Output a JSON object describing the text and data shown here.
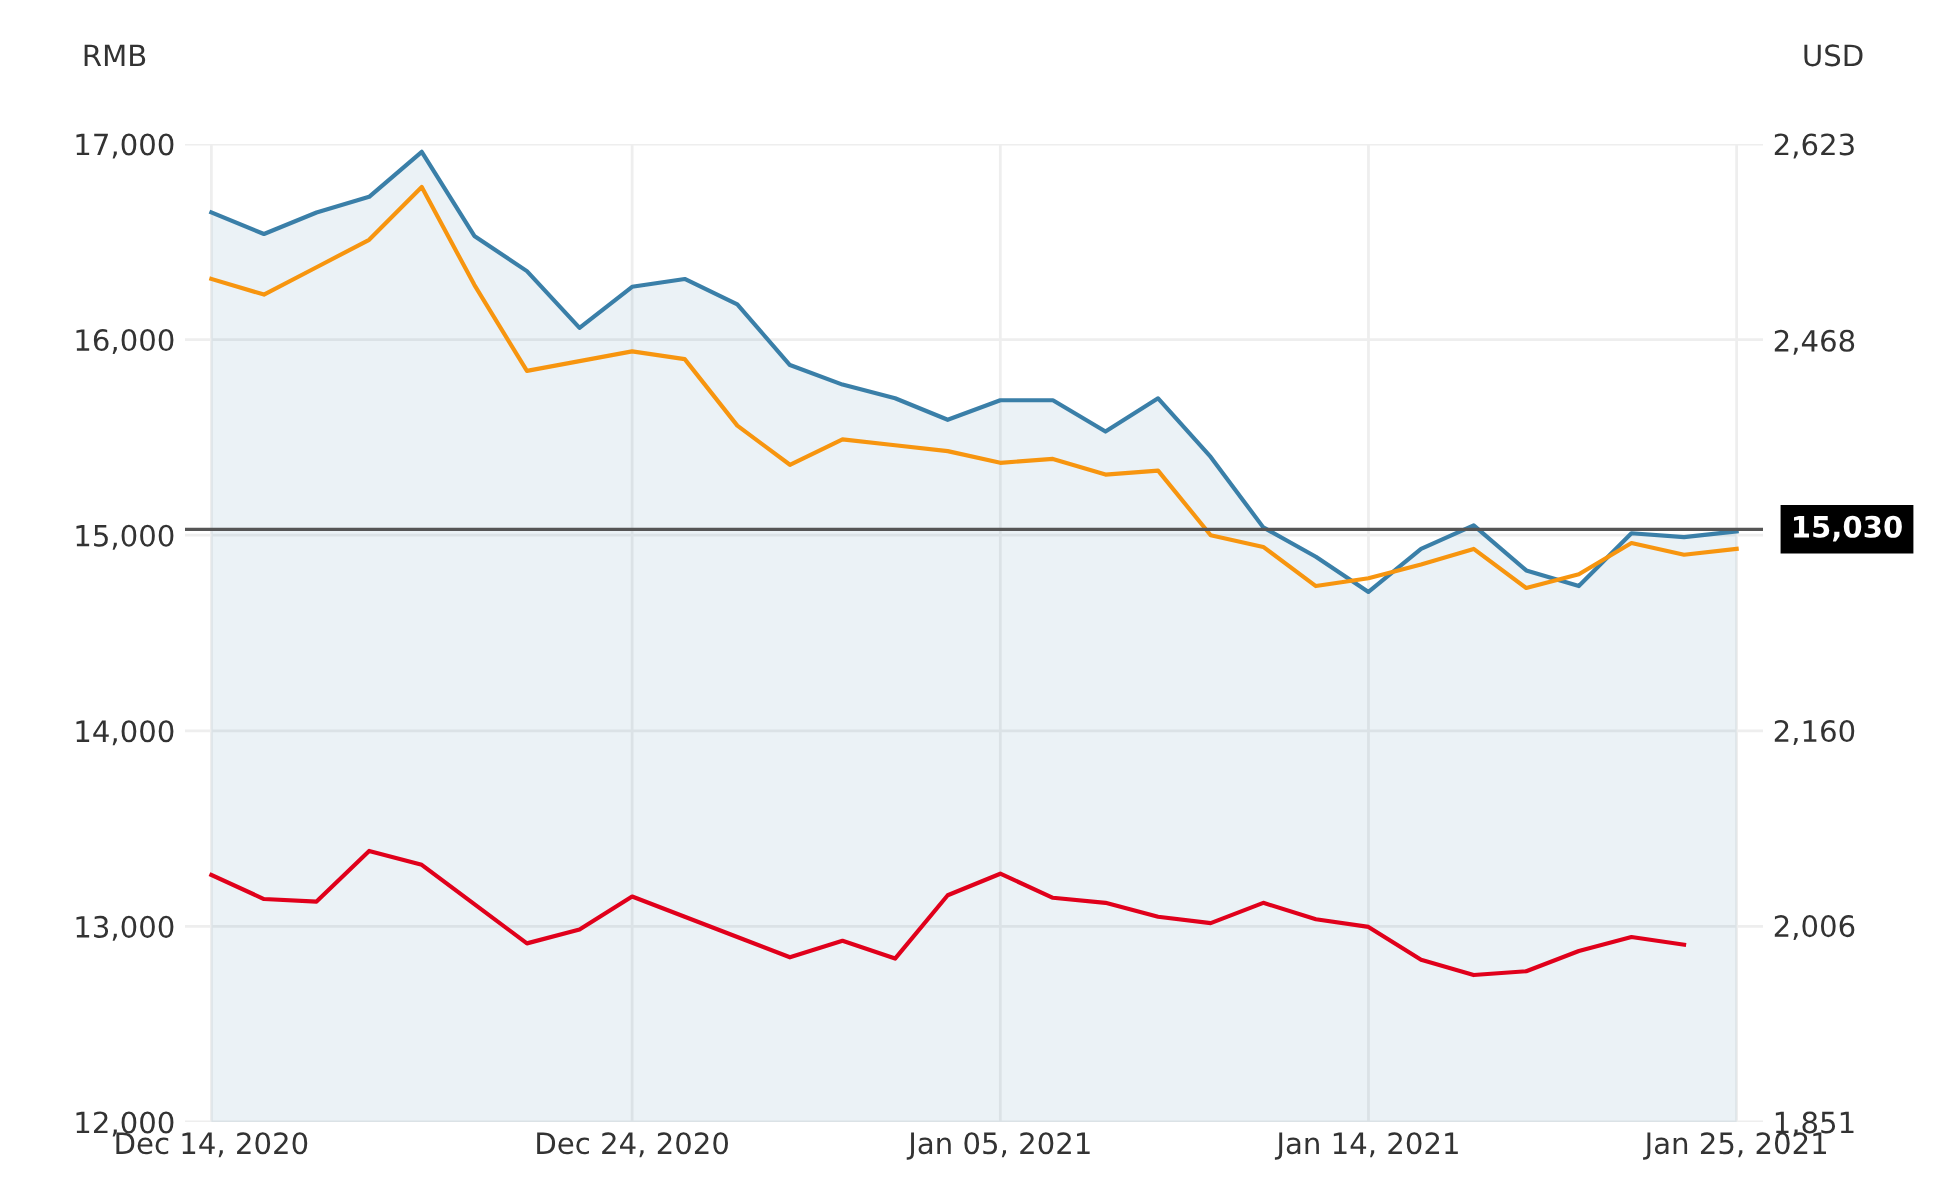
{
  "chart_data": {
    "type": "line",
    "categories": [
      "Dec 14, 2020",
      null,
      null,
      null,
      null,
      null,
      null,
      null,
      "Dec 24, 2020",
      null,
      null,
      null,
      null,
      null,
      null,
      "Jan 05, 2021",
      null,
      null,
      null,
      null,
      null,
      null,
      "Jan 14, 2021",
      null,
      null,
      null,
      null,
      null,
      null,
      "Jan 25, 2021"
    ],
    "ylabel": "RMB",
    "y2label": "USD",
    "ylim": [
      12000,
      17000
    ],
    "yticks": [
      {
        "value": 12000,
        "label": "12,000"
      },
      {
        "value": 13000,
        "label": "13,000"
      },
      {
        "value": 14000,
        "label": "14,000"
      },
      {
        "value": 15000,
        "label": "15,000"
      },
      {
        "value": 16000,
        "label": "16,000"
      },
      {
        "value": 17000,
        "label": "17,000"
      }
    ],
    "y2lim": [
      1851,
      2623
    ],
    "y2ticks": [
      {
        "value": 1851,
        "label": "1,851"
      },
      {
        "value": 2006,
        "label": "2,006"
      },
      {
        "value": 2160,
        "label": "2,160"
      },
      {
        "value": 2468,
        "label": "2,468"
      },
      {
        "value": 2623,
        "label": "2,623"
      }
    ],
    "series": [
      {
        "type": "area",
        "color": "#3a7fa8",
        "values": [
          16650,
          16540,
          16650,
          16730,
          16960,
          16530,
          16350,
          16060,
          16270,
          16310,
          16180,
          15870,
          15770,
          15700,
          15590,
          15690,
          15690,
          15530,
          15700,
          15400,
          15040,
          14890,
          14710,
          14930,
          15050,
          14820,
          14740,
          15010,
          14990,
          15020
        ]
      },
      {
        "color": "#f7950f",
        "values": [
          16310,
          16230,
          16370,
          16510,
          16780,
          16280,
          15840,
          15890,
          15940,
          15900,
          15560,
          15360,
          15490,
          15460,
          15430,
          15370,
          15390,
          15310,
          15330,
          15000,
          14940,
          14740,
          14780,
          14850,
          14930,
          14730,
          14800,
          14960,
          14900,
          14930
        ]
      },
      {
        "color": "#e0001b",
        "axis": "y2",
        "values": [
          2046,
          2027,
          2025,
          2065,
          2054,
          2023,
          1992,
          2003,
          2029,
          2013,
          1997,
          1981,
          1994,
          1980,
          2030,
          2047,
          2028,
          2024,
          2013,
          2008,
          2024,
          2011,
          2005,
          1979,
          1967,
          1970,
          1986,
          1997,
          1991,
          null
        ]
      }
    ],
    "ref_lines": [
      {
        "axis": "y",
        "value": 15030,
        "label": "15,030",
        "color": "#555555"
      }
    ],
    "grid": true
  }
}
